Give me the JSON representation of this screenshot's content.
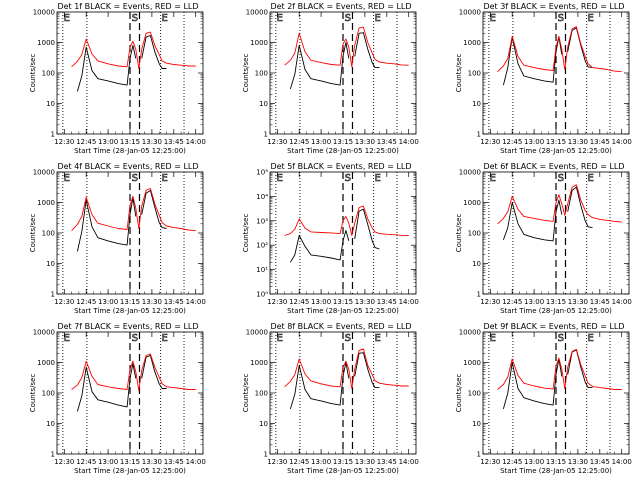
{
  "figure": {
    "xlabel": "Start Time (28-Jan-05 12:25:00)",
    "ylabel": "Counts/sec",
    "xticks": [
      "12:30",
      "12:45",
      "13:00",
      "13:15",
      "13:30",
      "13:45",
      "14:00"
    ],
    "xtick_minutes": [
      5,
      20,
      35,
      50,
      65,
      80,
      95
    ],
    "xlim_minutes": [
      0,
      100
    ],
    "yscale": "log",
    "colors": {
      "events": "#000000",
      "lld": "#ff0000",
      "axis": "#000000"
    },
    "series_names": {
      "events": "BLACK = Events",
      "lld": "RED = LLD"
    },
    "markers": [
      "E",
      "S",
      "E"
    ],
    "marker_minutes": [
      {
        "dotted": [
          4,
          20.5
        ]
      },
      {
        "dashed": [
          50,
          56.5
        ]
      },
      {
        "dotted": [
          71,
          87
        ]
      }
    ]
  },
  "chart_data": [
    {
      "type": "line",
      "title": "Det 1f BLACK = Events, RED = LLD",
      "yticks": [
        "1",
        "10",
        "100",
        "1000",
        "10000"
      ],
      "ylim": [
        1,
        10000
      ],
      "x": [
        10,
        14,
        17,
        20,
        24,
        28,
        35,
        42,
        48,
        50,
        52,
        54,
        56,
        58,
        61,
        64,
        67,
        70,
        72,
        75,
        80,
        85,
        88,
        90,
        95
      ],
      "series": [
        {
          "name": "Events",
          "values": [
            null,
            25,
            80,
            700,
            120,
            65,
            55,
            45,
            40,
            300,
            800,
            300,
            null,
            300,
            1500,
            1700,
            500,
            200,
            140,
            140,
            null,
            null,
            null,
            null,
            null
          ]
        },
        {
          "name": "LLD",
          "values": [
            160,
            240,
            400,
            1300,
            420,
            250,
            200,
            170,
            160,
            700,
            1100,
            600,
            140,
            600,
            2000,
            2200,
            800,
            400,
            250,
            210,
            190,
            180,
            175,
            170,
            170
          ]
        }
      ]
    },
    {
      "type": "line",
      "title": "Det 2f BLACK = Events, RED = LLD",
      "yticks": [
        "1",
        "10",
        "100",
        "1000",
        "10000"
      ],
      "ylim": [
        1,
        10000
      ],
      "x": [
        10,
        14,
        17,
        20,
        24,
        28,
        35,
        42,
        48,
        50,
        52,
        54,
        56,
        58,
        61,
        64,
        67,
        70,
        72,
        75,
        80,
        85,
        88,
        90,
        95
      ],
      "series": [
        {
          "name": "Events",
          "values": [
            null,
            30,
            90,
            800,
            130,
            65,
            55,
            45,
            40,
            350,
            1000,
            300,
            null,
            350,
            2000,
            2100,
            600,
            220,
            150,
            150,
            null,
            null,
            null,
            null,
            null
          ]
        },
        {
          "name": "LLD",
          "values": [
            180,
            260,
            450,
            2000,
            500,
            260,
            220,
            190,
            180,
            900,
            1300,
            700,
            160,
            800,
            3000,
            3200,
            1000,
            450,
            280,
            230,
            210,
            200,
            190,
            185,
            180
          ]
        }
      ]
    },
    {
      "type": "line",
      "title": "Det 3f BLACK = Events, RED = LLD",
      "yticks": [
        "1",
        "10",
        "100",
        "1000",
        "10000"
      ],
      "ylim": [
        1,
        10000
      ],
      "x": [
        10,
        14,
        17,
        20,
        24,
        28,
        35,
        42,
        48,
        50,
        52,
        54,
        56,
        58,
        61,
        64,
        67,
        70,
        72,
        75,
        80,
        85,
        88,
        90,
        95
      ],
      "series": [
        {
          "name": "Events",
          "values": [
            null,
            40,
            150,
            1500,
            200,
            80,
            65,
            55,
            50,
            500,
            1500,
            400,
            null,
            500,
            2500,
            3000,
            800,
            250,
            160,
            150,
            null,
            null,
            null,
            null,
            null
          ]
        },
        {
          "name": "LLD",
          "values": [
            110,
            170,
            300,
            1600,
            350,
            180,
            150,
            130,
            120,
            700,
            1600,
            600,
            130,
            700,
            2800,
            3300,
            900,
            350,
            200,
            150,
            140,
            130,
            120,
            115,
            110
          ]
        }
      ]
    },
    {
      "type": "line",
      "title": "Det 4f BLACK = Events, RED = LLD",
      "yticks": [
        "1",
        "10",
        "100",
        "1000",
        "10000"
      ],
      "ylim": [
        1,
        10000
      ],
      "x": [
        10,
        14,
        17,
        20,
        24,
        28,
        35,
        42,
        48,
        50,
        52,
        54,
        56,
        58,
        61,
        64,
        67,
        70,
        72,
        75,
        80,
        85,
        88,
        90,
        95
      ],
      "series": [
        {
          "name": "Events",
          "values": [
            null,
            25,
            110,
            1200,
            160,
            70,
            55,
            45,
            40,
            400,
            1400,
            350,
            null,
            400,
            2000,
            2500,
            700,
            220,
            150,
            140,
            null,
            null,
            null,
            null,
            null
          ]
        },
        {
          "name": "LLD",
          "values": [
            120,
            190,
            350,
            1500,
            400,
            210,
            170,
            140,
            130,
            800,
            1600,
            650,
            140,
            750,
            2500,
            2900,
            900,
            380,
            220,
            170,
            150,
            140,
            130,
            125,
            120
          ]
        }
      ]
    },
    {
      "type": "line",
      "title": "Det 5f BLACK = Events, RED = LLD",
      "yticks": [
        "10⁰",
        "10¹",
        "10²",
        "10³",
        "10⁴",
        "10⁵"
      ],
      "ylim": [
        1,
        100000
      ],
      "x": [
        10,
        14,
        17,
        20,
        24,
        28,
        35,
        42,
        48,
        50,
        52,
        54,
        56,
        58,
        61,
        64,
        67,
        70,
        72,
        75,
        80,
        85,
        88,
        90,
        95
      ],
      "series": [
        {
          "name": "Events",
          "values": [
            null,
            20,
            40,
            250,
            90,
            40,
            35,
            30,
            25,
            150,
            400,
            150,
            null,
            180,
            2500,
            3000,
            700,
            150,
            80,
            70,
            null,
            null,
            null,
            null,
            null
          ]
        },
        {
          "name": "LLD",
          "values": [
            250,
            300,
            450,
            1200,
            500,
            350,
            330,
            320,
            300,
            1000,
            1500,
            800,
            250,
            800,
            3500,
            4000,
            1200,
            500,
            350,
            300,
            280,
            270,
            260,
            255,
            250
          ]
        }
      ]
    },
    {
      "type": "line",
      "title": "Det 6f BLACK = Events, RED = LLD",
      "yticks": [
        "1",
        "10",
        "100",
        "1000",
        "10000"
      ],
      "ylim": [
        1,
        10000
      ],
      "x": [
        10,
        14,
        17,
        20,
        24,
        28,
        35,
        42,
        48,
        50,
        52,
        54,
        56,
        58,
        61,
        64,
        67,
        70,
        72,
        75,
        80,
        85,
        88,
        90,
        95
      ],
      "series": [
        {
          "name": "Events",
          "values": [
            null,
            60,
            150,
            1000,
            200,
            90,
            70,
            60,
            55,
            500,
            1200,
            400,
            null,
            500,
            2500,
            3200,
            800,
            250,
            160,
            150,
            null,
            null,
            null,
            null,
            null
          ]
        },
        {
          "name": "LLD",
          "values": [
            200,
            300,
            500,
            1600,
            600,
            350,
            300,
            260,
            240,
            1000,
            1800,
            900,
            380,
            900,
            3200,
            3800,
            1200,
            550,
            400,
            320,
            280,
            260,
            250,
            240,
            230
          ]
        }
      ]
    },
    {
      "type": "line",
      "title": "Det 7f BLACK = Events, RED = LLD",
      "yticks": [
        "1",
        "10",
        "100",
        "1000",
        "10000"
      ],
      "ylim": [
        1,
        10000
      ],
      "x": [
        10,
        14,
        17,
        20,
        24,
        28,
        35,
        42,
        48,
        50,
        52,
        54,
        56,
        58,
        61,
        64,
        67,
        70,
        72,
        75,
        80,
        85,
        88,
        90,
        95
      ],
      "series": [
        {
          "name": "Events",
          "values": [
            null,
            25,
            80,
            700,
            110,
            60,
            50,
            40,
            35,
            300,
            900,
            300,
            null,
            300,
            1500,
            1700,
            500,
            200,
            140,
            140,
            null,
            null,
            null,
            null,
            null
          ]
        },
        {
          "name": "LLD",
          "values": [
            130,
            180,
            320,
            1100,
            350,
            190,
            160,
            140,
            130,
            600,
            1100,
            500,
            120,
            550,
            1700,
            1900,
            700,
            330,
            200,
            160,
            150,
            140,
            135,
            130,
            130
          ]
        }
      ]
    },
    {
      "type": "line",
      "title": "Det 8f BLACK = Events, RED = LLD",
      "yticks": [
        "1",
        "10",
        "100",
        "1000",
        "10000"
      ],
      "ylim": [
        1,
        10000
      ],
      "x": [
        10,
        14,
        17,
        20,
        24,
        28,
        35,
        42,
        48,
        50,
        52,
        54,
        56,
        58,
        61,
        64,
        67,
        70,
        72,
        75,
        80,
        85,
        88,
        90,
        95
      ],
      "series": [
        {
          "name": "Events",
          "values": [
            null,
            30,
            90,
            800,
            130,
            65,
            55,
            45,
            40,
            350,
            1000,
            300,
            null,
            350,
            2000,
            2100,
            600,
            220,
            150,
            150,
            null,
            null,
            null,
            null,
            null
          ]
        },
        {
          "name": "LLD",
          "values": [
            160,
            240,
            400,
            1300,
            420,
            250,
            200,
            170,
            160,
            700,
            1100,
            600,
            140,
            600,
            2500,
            2800,
            800,
            400,
            250,
            210,
            190,
            180,
            175,
            170,
            170
          ]
        }
      ]
    },
    {
      "type": "line",
      "title": "Det 9f BLACK = Events, RED = LLD",
      "yticks": [
        "1",
        "10",
        "100",
        "1000",
        "10000"
      ],
      "ylim": [
        1,
        10000
      ],
      "x": [
        10,
        14,
        17,
        20,
        24,
        28,
        35,
        42,
        48,
        50,
        52,
        54,
        56,
        58,
        61,
        64,
        67,
        70,
        72,
        75,
        80,
        85,
        88,
        90,
        95
      ],
      "series": [
        {
          "name": "Events",
          "values": [
            null,
            30,
            100,
            1000,
            140,
            70,
            55,
            45,
            40,
            400,
            1300,
            350,
            null,
            400,
            2200,
            2600,
            700,
            230,
            150,
            150,
            null,
            null,
            null,
            null,
            null
          ]
        },
        {
          "name": "LLD",
          "values": [
            130,
            190,
            340,
            1300,
            380,
            210,
            170,
            145,
            135,
            750,
            1400,
            600,
            140,
            700,
            2300,
            2700,
            850,
            360,
            210,
            165,
            150,
            140,
            135,
            130,
            130
          ]
        }
      ]
    }
  ]
}
